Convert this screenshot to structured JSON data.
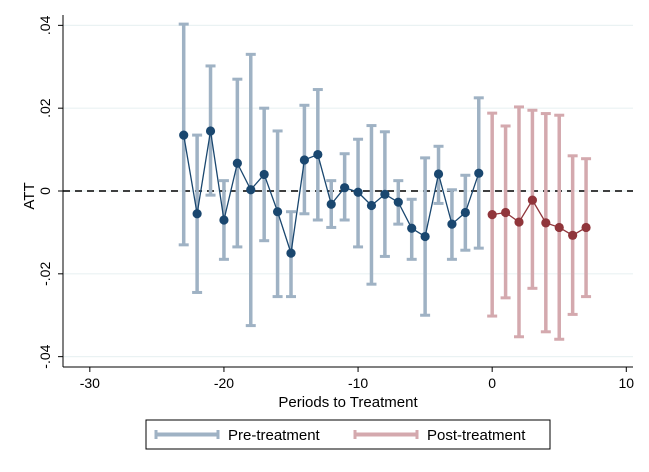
{
  "chart_data": {
    "type": "line",
    "title": "",
    "xlabel": "Periods to Treatment",
    "ylabel": "ATT",
    "xlim": [
      -32,
      10.5
    ],
    "ylim": [
      -0.0425,
      0.0425
    ],
    "xticks": [
      -30,
      -20,
      -10,
      0,
      10
    ],
    "xtick_labels": [
      "-30",
      "-20",
      "-10",
      "0",
      "10"
    ],
    "yticks": [
      -0.04,
      -0.02,
      0,
      0.02,
      0.04
    ],
    "ytick_labels": [
      "-.04",
      "-.02",
      "0",
      ".02",
      ".04"
    ],
    "grid": true,
    "reference_line": {
      "y": 0,
      "style": "dashed"
    },
    "legend_position": "bottom",
    "colors": {
      "pre_ci": "#9fb2c4",
      "pre_point": "#1a476f",
      "post_ci": "#d4a9ae",
      "post_point": "#90353b",
      "grid": "#eaf2f3",
      "zero_line": "#000000"
    },
    "series": [
      {
        "name": "Pre-treatment",
        "x": [
          -23,
          -22,
          -21,
          -20,
          -19,
          -18,
          -17,
          -16,
          -15,
          -14,
          -13,
          -12,
          -11,
          -10,
          -9,
          -8,
          -7,
          -6,
          -5,
          -4,
          -3,
          -2,
          -1
        ],
        "y": [
          0.0135,
          -0.0055,
          0.0145,
          -0.007,
          0.0067,
          0.0003,
          0.004,
          -0.005,
          -0.015,
          0.0075,
          0.0088,
          -0.0032,
          0.0008,
          -0.0003,
          -0.0035,
          -0.0008,
          -0.0027,
          -0.009,
          -0.011,
          0.0041,
          -0.008,
          -0.0052,
          0.0043
        ],
        "ci_low": [
          -0.013,
          -0.0245,
          -0.001,
          -0.0165,
          -0.0135,
          -0.0325,
          -0.012,
          -0.0255,
          -0.0255,
          -0.0055,
          -0.007,
          -0.0088,
          -0.007,
          -0.0135,
          -0.0225,
          -0.0158,
          -0.008,
          -0.0165,
          -0.03,
          -0.003,
          -0.0165,
          -0.0143,
          -0.0138
        ],
        "ci_high": [
          0.0403,
          0.0135,
          0.0302,
          0.0025,
          0.027,
          0.033,
          0.02,
          0.0145,
          -0.005,
          0.0207,
          0.0245,
          0.0025,
          0.009,
          0.0125,
          0.0158,
          0.0143,
          0.0025,
          -0.002,
          0.008,
          0.0108,
          0.0003,
          0.0038,
          0.0225
        ]
      },
      {
        "name": "Post-treatment",
        "x": [
          0,
          1,
          2,
          3,
          4,
          5,
          6,
          7
        ],
        "y": [
          -0.0057,
          -0.0052,
          -0.0075,
          -0.0022,
          -0.0077,
          -0.0088,
          -0.0107,
          -0.0088
        ],
        "ci_low": [
          -0.0302,
          -0.0258,
          -0.0352,
          -0.0235,
          -0.034,
          -0.0358,
          -0.0298,
          -0.0255
        ],
        "ci_high": [
          0.0188,
          0.0157,
          0.0203,
          0.0195,
          0.0187,
          0.0183,
          0.0085,
          0.0078
        ]
      }
    ]
  }
}
